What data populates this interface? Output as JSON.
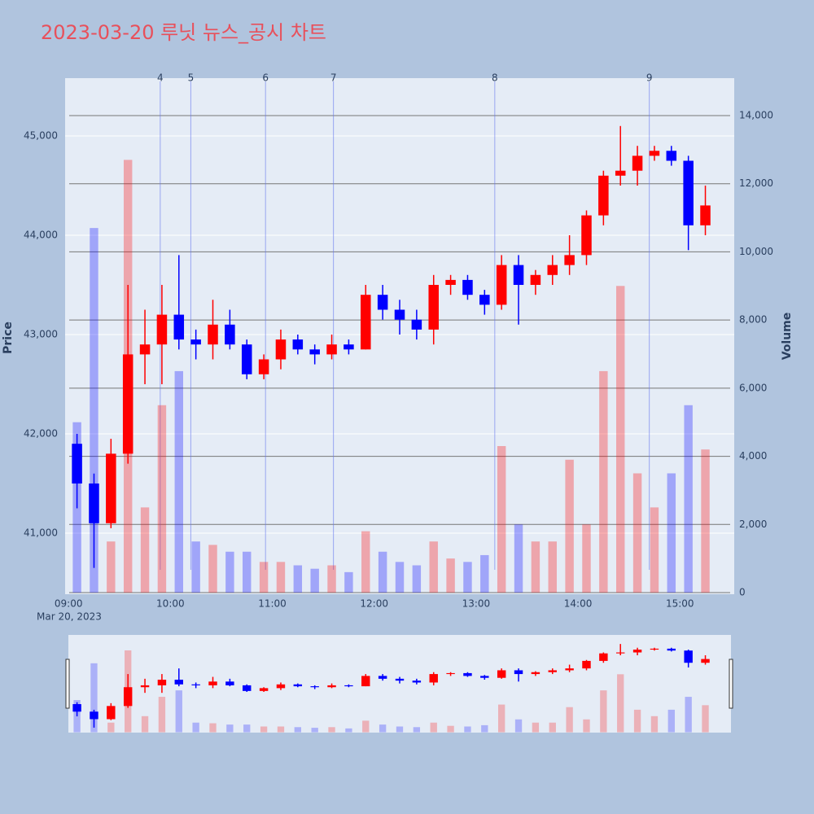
{
  "chart_data": {
    "type": "candlestick",
    "title": "2023-03-20 루닛 뉴스_공시 차트",
    "y_title": "Price",
    "y2_title": "Volume",
    "x_date_label": "Mar 20, 2023",
    "increasing_color": "#ff0000",
    "decreasing_color": "#0000ff",
    "x": [
      "2023-03-20 09:00",
      "2023-03-20 09:10",
      "2023-03-20 09:20",
      "2023-03-20 09:30",
      "2023-03-20 09:40",
      "2023-03-20 09:50",
      "2023-03-20 10:00",
      "2023-03-20 10:10",
      "2023-03-20 10:20",
      "2023-03-20 10:30",
      "2023-03-20 10:40",
      "2023-03-20 10:50",
      "2023-03-20 11:00",
      "2023-03-20 11:10",
      "2023-03-20 11:20",
      "2023-03-20 11:30",
      "2023-03-20 11:40",
      "2023-03-20 11:50",
      "2023-03-20 12:00",
      "2023-03-20 12:10",
      "2023-03-20 12:20",
      "2023-03-20 12:30",
      "2023-03-20 12:40",
      "2023-03-20 12:50",
      "2023-03-20 13:00",
      "2023-03-20 13:10",
      "2023-03-20 13:20",
      "2023-03-20 13:30",
      "2023-03-20 13:40",
      "2023-03-20 13:50",
      "2023-03-20 14:00",
      "2023-03-20 14:10",
      "2023-03-20 14:20",
      "2023-03-20 14:30",
      "2023-03-20 14:40",
      "2023-03-20 14:50",
      "2023-03-20 15:00",
      "2023-03-20 15:10"
    ],
    "open": [
      41900,
      41500,
      41100,
      41800,
      42800,
      42900,
      43200,
      42950,
      42900,
      43100,
      42900,
      42600,
      42750,
      42950,
      42850,
      42800,
      42900,
      42850,
      43400,
      43250,
      43150,
      43050,
      43500,
      43550,
      43400,
      43300,
      43700,
      43500,
      43600,
      43700,
      43800,
      44200,
      44600,
      44650,
      44800,
      44850,
      44750,
      44100
    ],
    "high": [
      42000,
      41600,
      41950,
      43500,
      43250,
      43500,
      43800,
      43050,
      43350,
      43250,
      42950,
      42800,
      43050,
      43000,
      42900,
      43000,
      42950,
      43500,
      43500,
      43350,
      43250,
      43600,
      43600,
      43600,
      43450,
      43800,
      43800,
      43650,
      43800,
      44000,
      44250,
      44650,
      45100,
      44900,
      44900,
      44900,
      44800,
      44500
    ],
    "low": [
      41250,
      40650,
      41050,
      41700,
      42500,
      42500,
      42850,
      42750,
      42750,
      42850,
      42550,
      42550,
      42650,
      42800,
      42700,
      42750,
      42800,
      42850,
      43150,
      43000,
      42950,
      42900,
      43400,
      43350,
      43200,
      43250,
      43100,
      43400,
      43500,
      43600,
      43700,
      44100,
      44500,
      44500,
      44750,
      44700,
      43850,
      44000
    ],
    "close": [
      41500,
      41100,
      41800,
      42800,
      42900,
      43200,
      42950,
      42900,
      43100,
      42900,
      42600,
      42750,
      42950,
      42850,
      42800,
      42900,
      42850,
      43400,
      43250,
      43150,
      43050,
      43500,
      43550,
      43400,
      43300,
      43700,
      43500,
      43600,
      43700,
      43800,
      44200,
      44600,
      44650,
      44800,
      44850,
      44750,
      44100,
      44300
    ],
    "volume": [
      5000,
      10700,
      1500,
      12700,
      2500,
      5500,
      6500,
      1500,
      1400,
      1200,
      1200,
      900,
      900,
      800,
      700,
      800,
      600,
      1800,
      1200,
      900,
      800,
      1500,
      1000,
      900,
      1100,
      4300,
      2000,
      1500,
      1500,
      3900,
      2000,
      6500,
      9000,
      3500,
      2500,
      3500,
      5500,
      4200
    ],
    "annotations": [
      {
        "x": "2023-03-20 09:54",
        "label": "4"
      },
      {
        "x": "2023-03-20 10:12",
        "label": "5"
      },
      {
        "x": "2023-03-20 10:56",
        "label": "6"
      },
      {
        "x": "2023-03-20 11:36",
        "label": "7"
      },
      {
        "x": "2023-03-20 13:11",
        "label": "8"
      },
      {
        "x": "2023-03-20 14:42",
        "label": "9"
      }
    ],
    "xlim": [
      "2023-03-20 08:58",
      "2023-03-20 15:32"
    ],
    "xticks": [
      {
        "value": "2023-03-20 09:00",
        "label": "09:00"
      },
      {
        "value": "2023-03-20 10:00",
        "label": "10:00"
      },
      {
        "value": "2023-03-20 11:00",
        "label": "11:00"
      },
      {
        "value": "2023-03-20 12:00",
        "label": "12:00"
      },
      {
        "value": "2023-03-20 13:00",
        "label": "13:00"
      },
      {
        "value": "2023-03-20 14:00",
        "label": "14:00"
      },
      {
        "value": "2023-03-20 15:00",
        "label": "15:00"
      }
    ],
    "ylim": [
      40385,
      45582
    ],
    "yticks": [
      {
        "value": 41000,
        "label": "41,000"
      },
      {
        "value": 42000,
        "label": "42,000"
      },
      {
        "value": 43000,
        "label": "43,000"
      },
      {
        "value": 44000,
        "label": "44,000"
      },
      {
        "value": 45000,
        "label": "45,000"
      }
    ],
    "y2lim": [
      -48,
      15099
    ],
    "y2ticks": [
      0,
      {
        "value": 2000,
        "label": "2,000"
      },
      {
        "value": 4000,
        "label": "4,000"
      },
      {
        "value": 6000,
        "label": "6,000"
      },
      {
        "value": 8000,
        "label": "8,000"
      },
      {
        "value": 10000,
        "label": "10,000"
      },
      {
        "value": 12000,
        "label": "12,000"
      },
      {
        "value": 14000,
        "label": "14,000"
      }
    ],
    "grid": true
  }
}
